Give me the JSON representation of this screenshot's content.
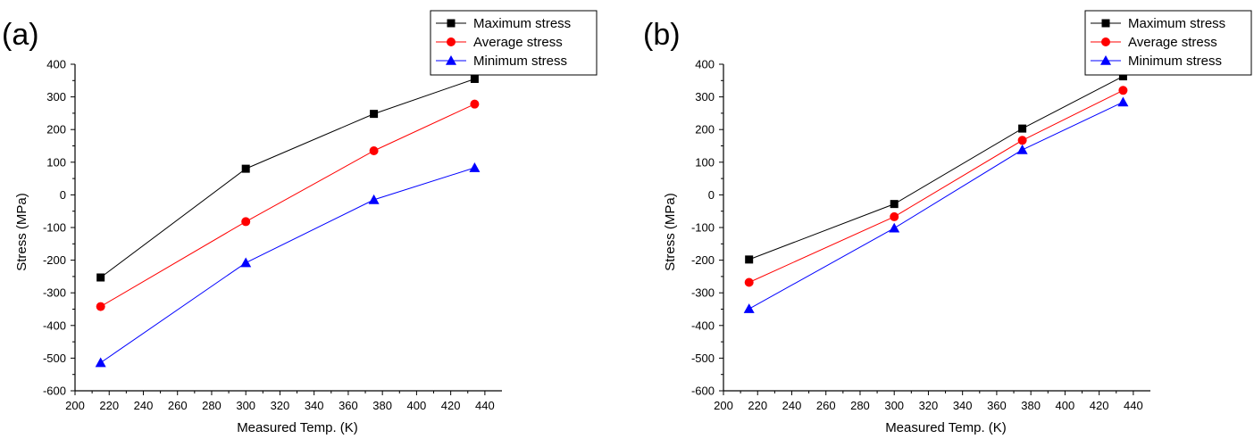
{
  "chart_data": [
    {
      "type": "line",
      "panel_label": "(a)",
      "xlabel": "Measured Temp. (K)",
      "ylabel": "Stress (MPa)",
      "xlim": [
        200,
        450
      ],
      "ylim": [
        -600,
        400
      ],
      "xticks": [
        200,
        220,
        240,
        260,
        280,
        300,
        320,
        340,
        360,
        380,
        400,
        420,
        440
      ],
      "yticks": [
        -600,
        -500,
        -400,
        -300,
        -200,
        -100,
        0,
        100,
        200,
        300,
        400
      ],
      "legend_position": "top-right",
      "grid": false,
      "x": [
        215,
        300,
        375,
        434
      ],
      "series": [
        {
          "name": "Maximum stress",
          "values": [
            -253,
            80,
            248,
            355
          ],
          "color": "#000000",
          "marker": "square"
        },
        {
          "name": "Average stress",
          "values": [
            -342,
            -82,
            135,
            278
          ],
          "color": "#ff0000",
          "marker": "circle"
        },
        {
          "name": "Minimum stress",
          "values": [
            -514,
            -208,
            -15,
            83
          ],
          "color": "#0000ff",
          "marker": "triangle"
        }
      ]
    },
    {
      "type": "line",
      "panel_label": "(b)",
      "xlabel": "Measured Temp. (K)",
      "ylabel": "Stress (MPa)",
      "xlim": [
        200,
        450
      ],
      "ylim": [
        -600,
        400
      ],
      "xticks": [
        200,
        220,
        240,
        260,
        280,
        300,
        320,
        340,
        360,
        380,
        400,
        420,
        440
      ],
      "yticks": [
        -600,
        -500,
        -400,
        -300,
        -200,
        -100,
        0,
        100,
        200,
        300,
        400
      ],
      "legend_position": "top-right",
      "grid": false,
      "x": [
        215,
        300,
        375,
        434
      ],
      "series": [
        {
          "name": "Maximum stress",
          "values": [
            -198,
            -28,
            203,
            363
          ],
          "color": "#000000",
          "marker": "square"
        },
        {
          "name": "Average stress",
          "values": [
            -268,
            -67,
            167,
            320
          ],
          "color": "#ff0000",
          "marker": "circle"
        },
        {
          "name": "Minimum stress",
          "values": [
            -349,
            -102,
            138,
            284
          ],
          "color": "#0000ff",
          "marker": "triangle"
        }
      ]
    }
  ]
}
